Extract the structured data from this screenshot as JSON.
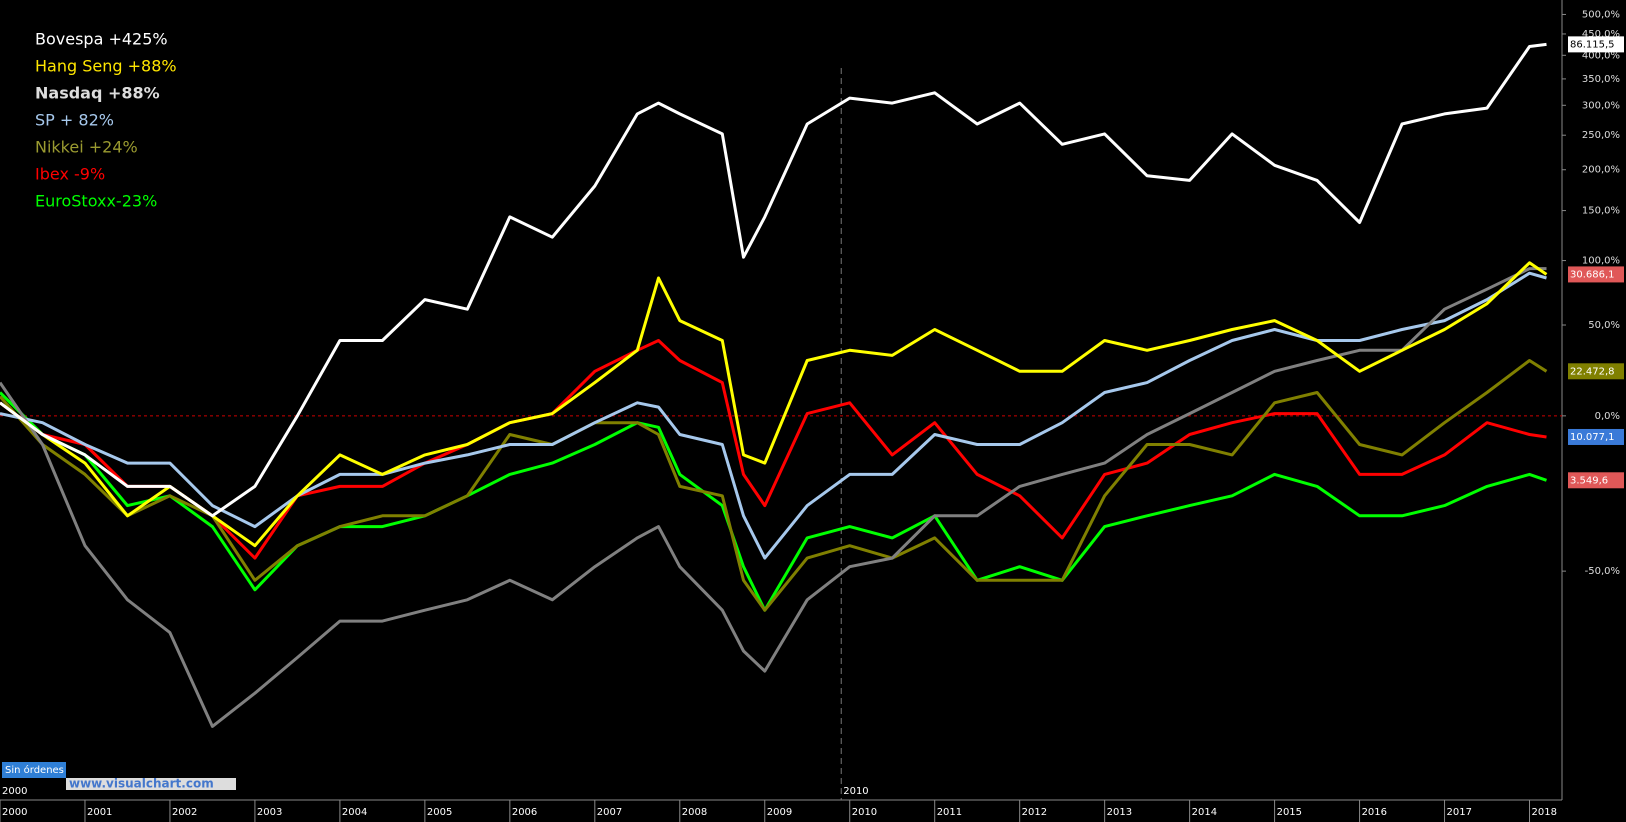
{
  "chart_data": {
    "type": "line",
    "scale": "log",
    "grid": false,
    "x": [
      2000,
      2000.5,
      2001,
      2001.5,
      2002,
      2002.5,
      2003,
      2003.5,
      2004,
      2004.5,
      2005,
      2005.5,
      2006,
      2006.5,
      2007,
      2007.5,
      2007.75,
      2008,
      2008.5,
      2008.75,
      2009,
      2009.5,
      2010,
      2010.5,
      2011,
      2011.5,
      2012,
      2012.5,
      2013,
      2013.5,
      2014,
      2014.5,
      2015,
      2015.5,
      2016,
      2016.5,
      2017,
      2017.5,
      2018,
      2018.2
    ],
    "xlim": [
      2000,
      2018.3
    ],
    "xticks": [
      2000,
      2001,
      2002,
      2003,
      2004,
      2005,
      2006,
      2007,
      2008,
      2009,
      2010,
      2011,
      2012,
      2013,
      2014,
      2015,
      2016,
      2017,
      2018
    ],
    "ylim": [
      -82,
      540
    ],
    "yticks": [
      {
        "value": 500,
        "label": "500,0%"
      },
      {
        "value": 450,
        "label": "450,0%"
      },
      {
        "value": 400,
        "label": "400,0%"
      },
      {
        "value": 350,
        "label": "350,0%"
      },
      {
        "value": 300,
        "label": "300,0%"
      },
      {
        "value": 250,
        "label": "250,0%"
      },
      {
        "value": 200,
        "label": "200,0%"
      },
      {
        "value": 150,
        "label": "150,0%"
      },
      {
        "value": 100,
        "label": "100,0%"
      },
      {
        "value": 50,
        "label": "50,0%"
      },
      {
        "value": 0,
        "label": "0,0%"
      },
      {
        "value": -50,
        "label": "-50,0%"
      }
    ],
    "series": [
      {
        "name": "Bovespa +425%",
        "color": "#ffffff",
        "legend_color": "#ffffff",
        "last_label": "86.115,5",
        "last_label_color": "#ffffff",
        "values": [
          6,
          -8,
          -16,
          -27,
          -27,
          -36,
          -27,
          0,
          40,
          40,
          68,
          61,
          143,
          122,
          179,
          285,
          304,
          285,
          252,
          103,
          143,
          268,
          313,
          304,
          323,
          268,
          304,
          236,
          252,
          192,
          186,
          252,
          206,
          186,
          137,
          268,
          285,
          295,
          420,
          425
        ]
      },
      {
        "name": "Hang Seng +88%",
        "color": "#ffff00",
        "legend_color": "#ffe600",
        "last_label": "30.686,1",
        "last_label_color": "#e05858",
        "values": [
          6,
          -8,
          -19,
          -36,
          -27,
          -36,
          -44,
          -30,
          -16,
          -23,
          -16,
          -12,
          -3,
          1,
          16,
          34,
          85,
          53,
          40,
          -16,
          -19,
          28,
          34,
          31,
          47,
          34,
          22,
          22,
          40,
          34,
          40,
          47,
          53,
          40,
          22,
          34,
          47,
          65,
          98,
          88
        ]
      },
      {
        "name": "Nasdaq +88%",
        "color": "#808080",
        "legend_color": "#dddddd",
        "values": [
          16,
          -12,
          -44,
          -56,
          -62,
          -75,
          -71,
          -66,
          -60,
          -60,
          -58,
          -56,
          -52,
          -56,
          -49,
          -42,
          -39,
          -49,
          -58,
          -65,
          -68,
          -56,
          -49,
          -47,
          -36,
          -36,
          -27,
          -23,
          -19,
          -8,
          1,
          11,
          22,
          28,
          34,
          34,
          61,
          76,
          93,
          93
        ]
      },
      {
        "name": "SP + 82%",
        "color": "#a6c8ec",
        "legend_color": "#a6c8ec",
        "values": [
          1,
          -3,
          -12,
          -19,
          -19,
          -33,
          -39,
          -30,
          -23,
          -23,
          -19,
          -16,
          -12,
          -12,
          -3,
          6,
          4,
          -8,
          -12,
          -36,
          -47,
          -33,
          -23,
          -23,
          -8,
          -12,
          -12,
          -3,
          11,
          16,
          28,
          40,
          47,
          40,
          40,
          47,
          53,
          68,
          89,
          85
        ]
      },
      {
        "name": "Nikkei +24%",
        "color": "#808000",
        "legend_color": "#9a9a30",
        "last_label": "22.472,8",
        "last_label_color": "#808000",
        "values": [
          9,
          -12,
          -23,
          -36,
          -30,
          -36,
          -52,
          -44,
          -39,
          -36,
          -36,
          -30,
          -8,
          -12,
          -3,
          -3,
          -8,
          -27,
          -30,
          -52,
          -58,
          -47,
          -44,
          -47,
          -42,
          -52,
          -52,
          -52,
          -30,
          -12,
          -12,
          -16,
          6,
          11,
          -12,
          -16,
          -3,
          11,
          28,
          22
        ]
      },
      {
        "name": "Ibex -9%",
        "color": "#ff0000",
        "legend_color": "#ff0000",
        "last_label": "10.077,1",
        "last_label_color": "#3a7ad8",
        "values": [
          6,
          -8,
          -12,
          -27,
          -27,
          -36,
          -47,
          -30,
          -27,
          -27,
          -19,
          -12,
          -3,
          1,
          22,
          34,
          40,
          28,
          16,
          -23,
          -33,
          1,
          6,
          -16,
          -3,
          -23,
          -30,
          -42,
          -23,
          -19,
          -8,
          -3,
          1,
          1,
          -23,
          -23,
          -16,
          -3,
          -8,
          -9
        ]
      },
      {
        "name": "EuroStoxx-23%",
        "color": "#00ff00",
        "legend_color": "#00ff00",
        "last_label": "3.549,6",
        "last_label_color": "#e05858",
        "values": [
          11,
          -8,
          -16,
          -33,
          -30,
          -39,
          -54,
          -44,
          -39,
          -39,
          -36,
          -30,
          -23,
          -19,
          -12,
          -3,
          -5,
          -23,
          -33,
          -49,
          -58,
          -42,
          -39,
          -42,
          -36,
          -52,
          -49,
          -52,
          -39,
          -36,
          -33,
          -30,
          -23,
          -27,
          -36,
          -36,
          -33,
          -27,
          -23,
          -25
        ]
      }
    ],
    "annotations": [
      {
        "text": "2010",
        "x": 2009.9
      }
    ],
    "status": "Sin órdenes",
    "watermark": "www.visualchart.com",
    "start_label": "2000"
  }
}
